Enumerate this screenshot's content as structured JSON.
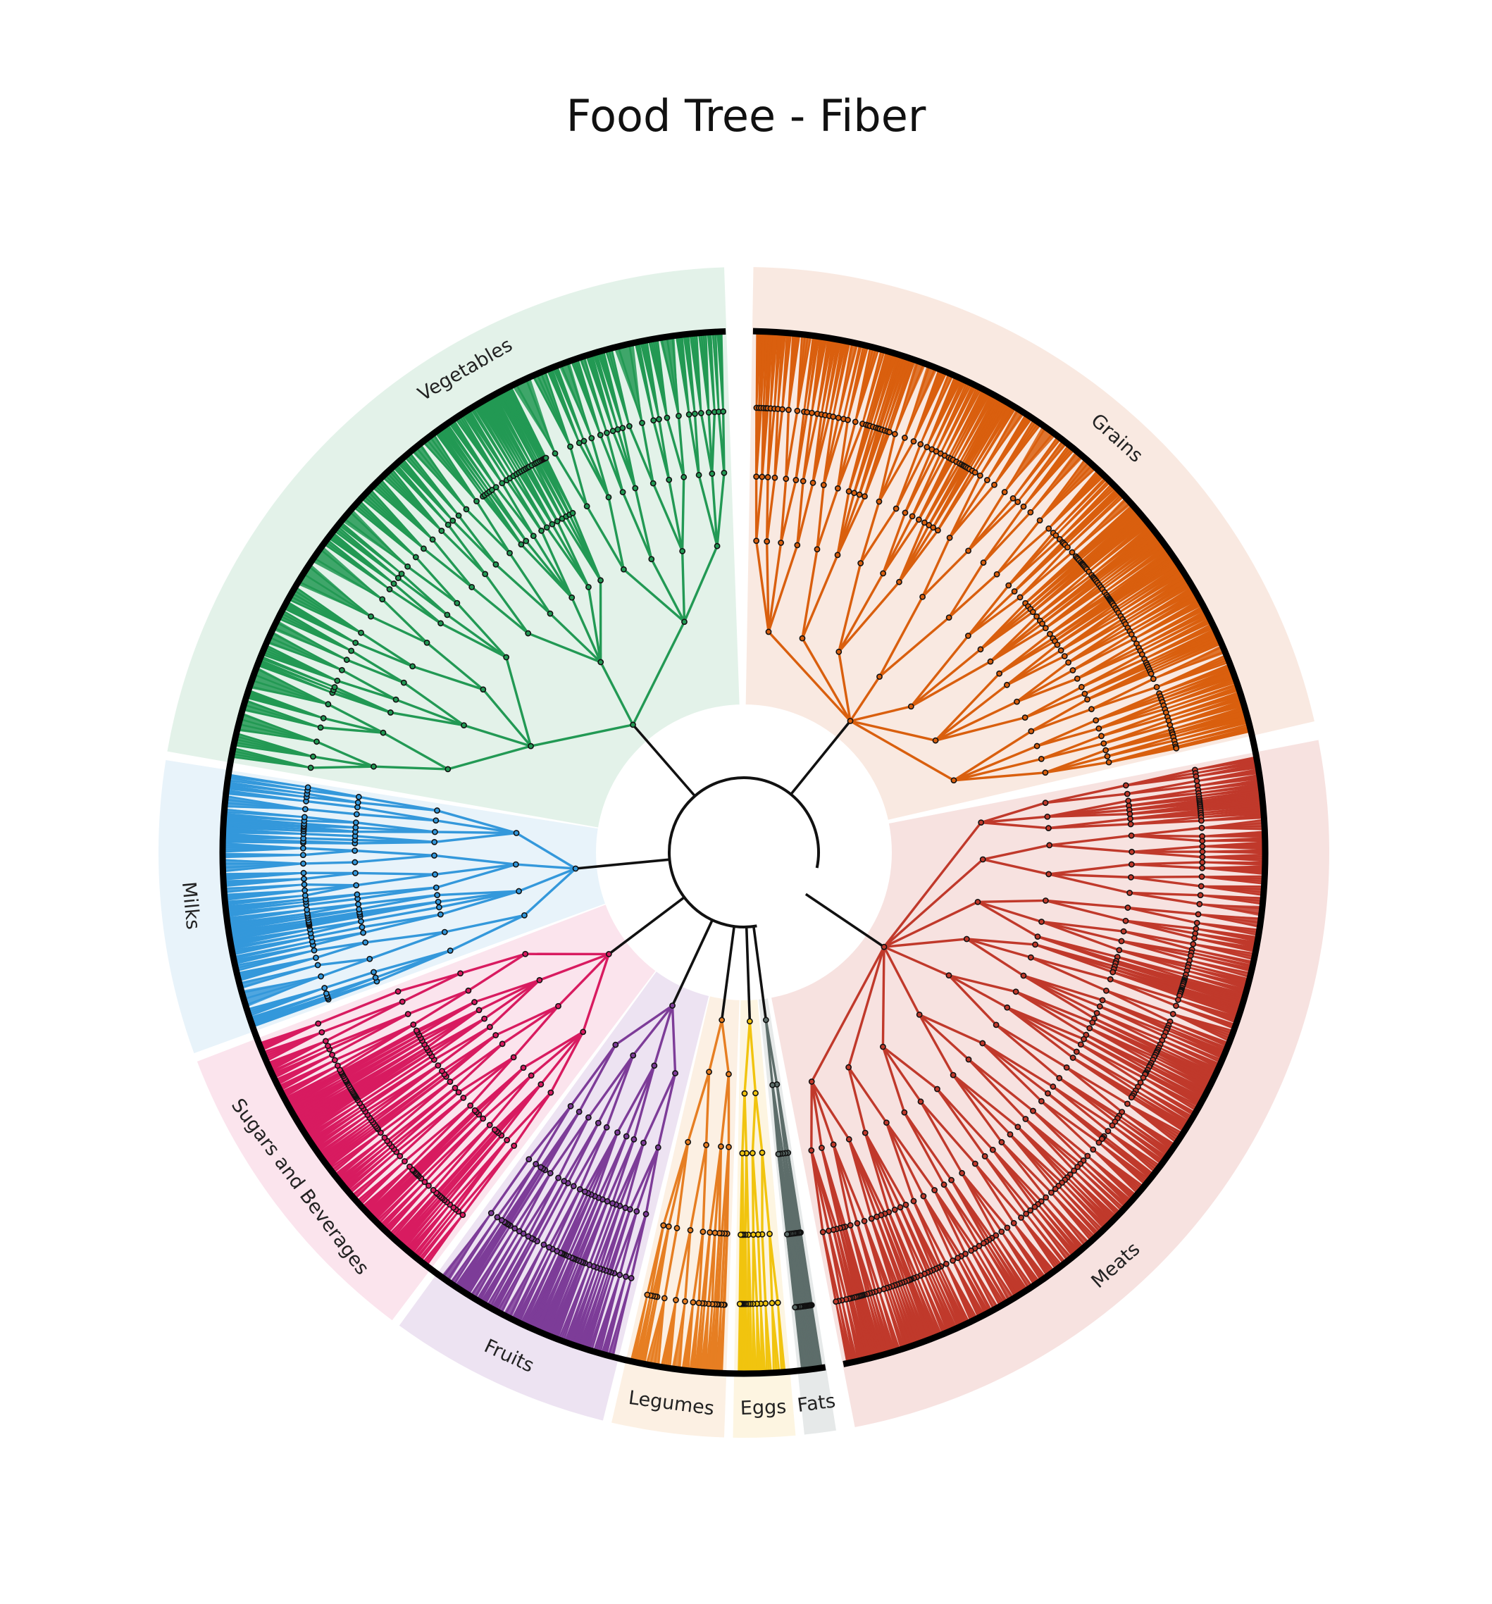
{
  "chart_data": {
    "type": "radial-tree",
    "title": "Food Tree - Fiber",
    "groups": [
      {
        "name": "Grains",
        "color": "#d95f0e",
        "band_color": "#f9e6dc",
        "depth_profile": [
          1,
          6,
          18,
          48,
          120
        ]
      },
      {
        "name": "Meats",
        "color": "#c0392b",
        "band_color": "#f6dddb",
        "depth_profile": [
          1,
          7,
          22,
          60,
          150
        ]
      },
      {
        "name": "Fats",
        "color": "#5d6d6a",
        "band_color": "#e2e6e6",
        "depth_profile": [
          1,
          2,
          4,
          10,
          18
        ]
      },
      {
        "name": "Eggs",
        "color": "#f1c40f",
        "band_color": "#fdf4dc",
        "depth_profile": [
          1,
          2,
          4,
          8,
          14
        ]
      },
      {
        "name": "Legumes",
        "color": "#e67e22",
        "band_color": "#fceedf",
        "depth_profile": [
          1,
          3,
          7,
          16,
          30
        ]
      },
      {
        "name": "Fruits",
        "color": "#7d3c98",
        "band_color": "#eadff0",
        "depth_profile": [
          1,
          3,
          9,
          24,
          48
        ]
      },
      {
        "name": "Sugars and Beverages",
        "color": "#d81b60",
        "band_color": "#fbe0ea",
        "depth_profile": [
          1,
          3,
          10,
          28,
          60
        ]
      },
      {
        "name": "Milks",
        "color": "#3498db",
        "band_color": "#e4f1fa",
        "depth_profile": [
          1,
          3,
          10,
          24,
          48
        ]
      },
      {
        "name": "Vegetables",
        "color": "#229954",
        "band_color": "#dff0e6",
        "depth_profile": [
          1,
          4,
          14,
          40,
          100
        ]
      }
    ],
    "value_label": "Fiber"
  }
}
